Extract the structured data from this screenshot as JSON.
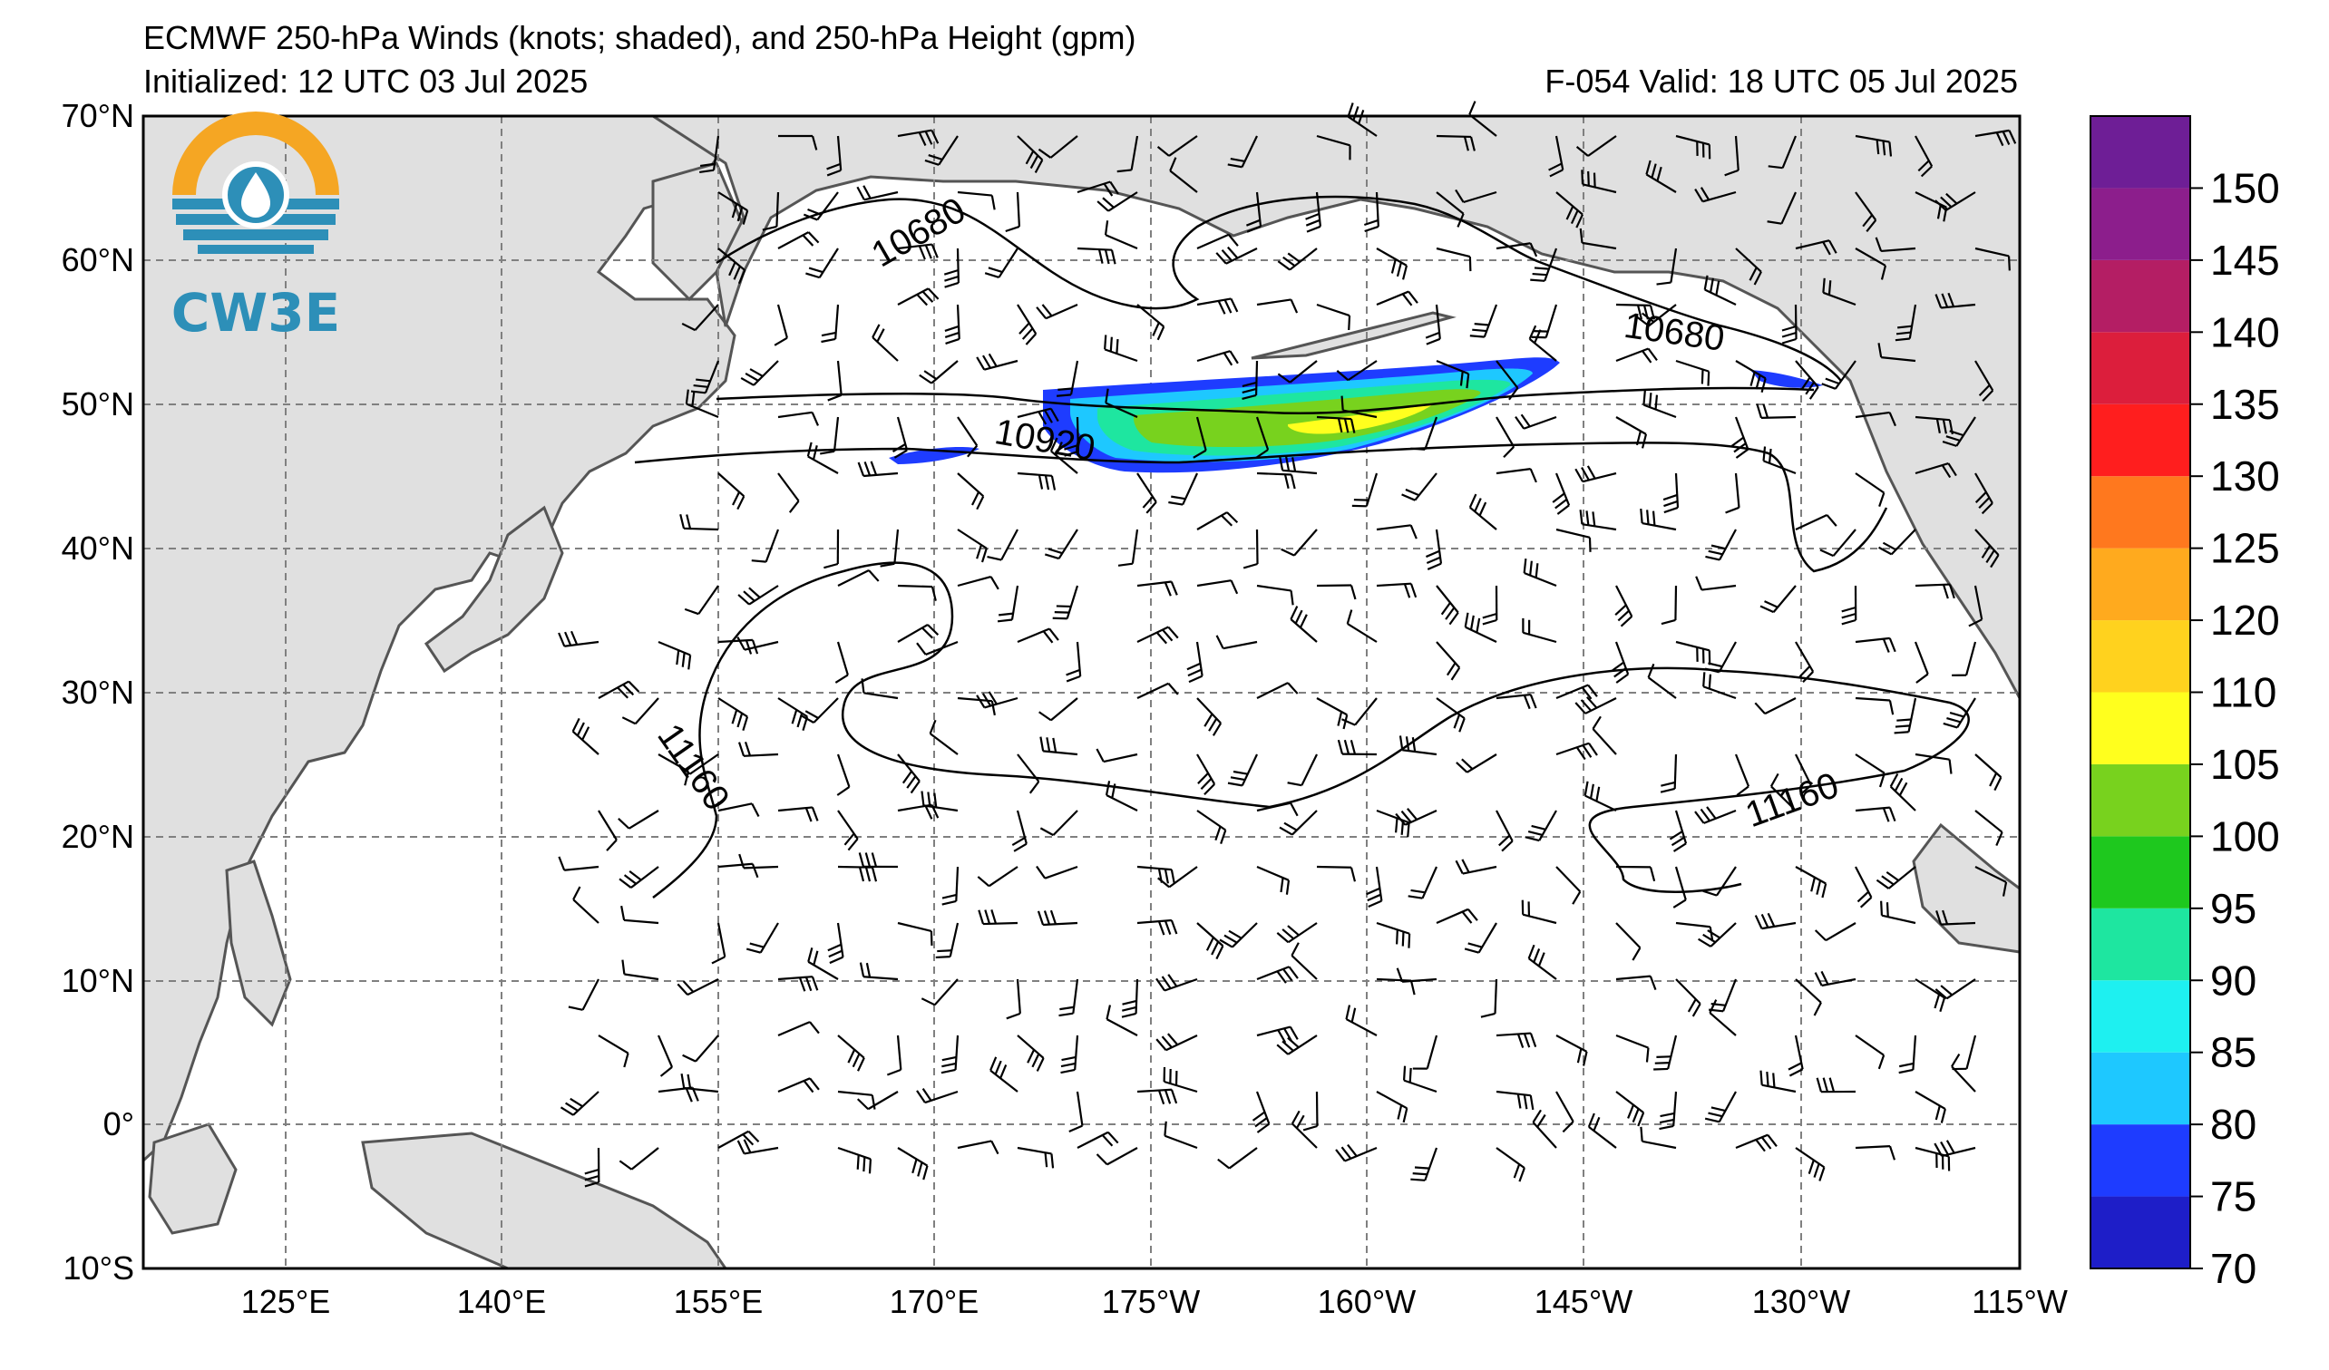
{
  "header": {
    "title": "ECMWF 250-hPa Winds (knots; shaded), and 250-hPa Height (gpm)",
    "initialized": "Initialized: 12 UTC 03 Jul 2025",
    "valid": "F-054  Valid: 18 UTC 05 Jul 2025"
  },
  "logo": {
    "text": "CW3E"
  },
  "map": {
    "lat_labels": [
      "70°N",
      "60°N",
      "50°N",
      "40°N",
      "30°N",
      "20°N",
      "10°N",
      "0°",
      "10°S"
    ],
    "lon_labels": [
      "125°E",
      "140°E",
      "155°E",
      "170°E",
      "175°W",
      "160°W",
      "145°W",
      "130°W",
      "115°W"
    ],
    "contour_labels": [
      "10680",
      "10680",
      "10920",
      "11160",
      "11160"
    ],
    "gridlines": true
  },
  "colorbar": {
    "levels": [
      "70",
      "75",
      "80",
      "85",
      "90",
      "95",
      "100",
      "105",
      "110",
      "120",
      "125",
      "130",
      "135",
      "140",
      "145",
      "150"
    ],
    "colors": [
      "#1e1ec8",
      "#1e3cff",
      "#1ec8ff",
      "#1ef0f0",
      "#1ee6a0",
      "#1ec81e",
      "#78d21e",
      "#ffff1e",
      "#ffd21e",
      "#ffaa1e",
      "#ff781e",
      "#ff1e1e",
      "#dc1e3c",
      "#b41e64",
      "#8c1e8c",
      "#6e1e96"
    ],
    "units": "knots"
  }
}
